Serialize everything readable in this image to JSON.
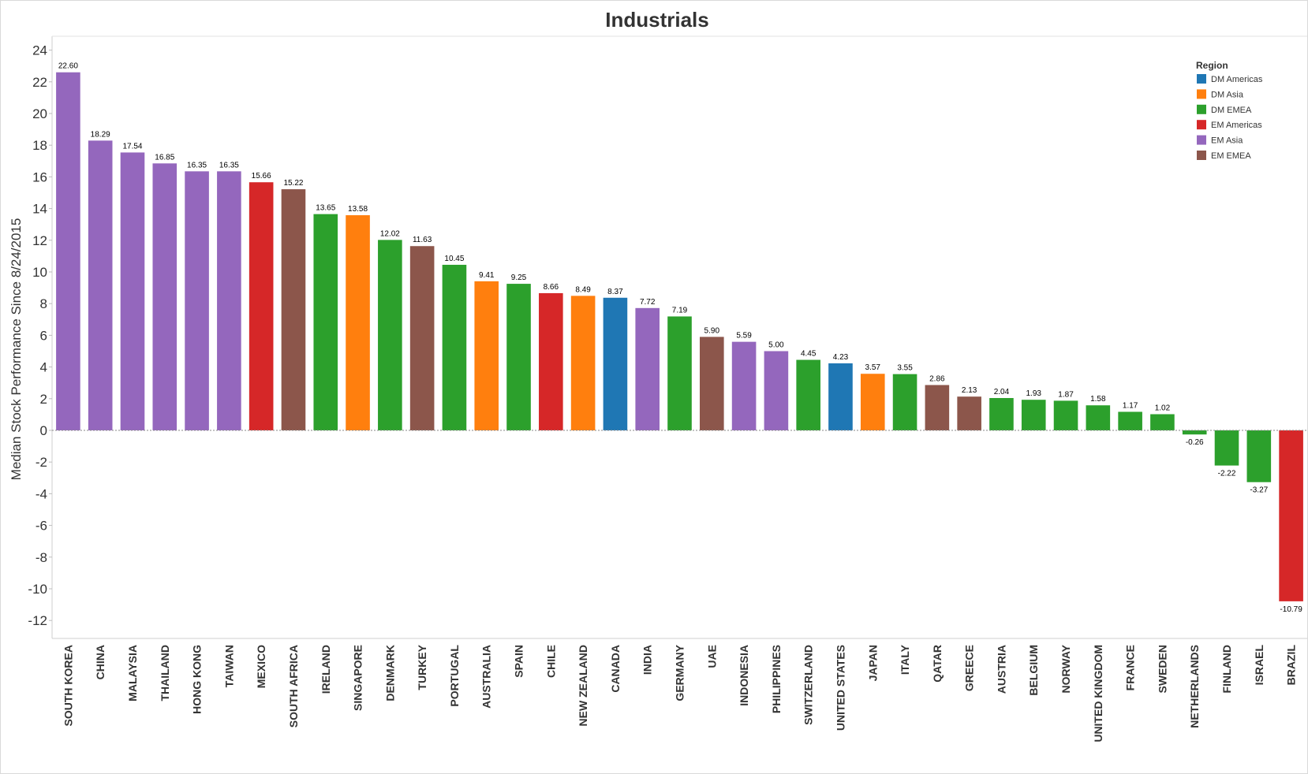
{
  "chart_data": {
    "type": "bar",
    "title": "Industrials",
    "ylabel": "Median Stock Performance Since 8/24/2015",
    "xlabel": "",
    "ylim": [
      -13,
      25
    ],
    "yticks": [
      24,
      22,
      20,
      18,
      16,
      14,
      12,
      10,
      8,
      6,
      4,
      2,
      0,
      -2,
      -4,
      -6,
      -8,
      -10,
      -12
    ],
    "grid": false,
    "legend": {
      "title": "Region",
      "placement": "top-right",
      "entries": [
        {
          "name": "DM Americas",
          "color": "#1f77b4"
        },
        {
          "name": "DM Asia",
          "color": "#ff7f0e"
        },
        {
          "name": "DM EMEA",
          "color": "#2ca02c"
        },
        {
          "name": "EM Americas",
          "color": "#d62728"
        },
        {
          "name": "EM Asia",
          "color": "#9467bd"
        },
        {
          "name": "EM EMEA",
          "color": "#8c564b"
        }
      ]
    },
    "bars": [
      {
        "category": "SOUTH KOREA",
        "value": 22.6,
        "label": "22.60",
        "region": "EM Asia"
      },
      {
        "category": "CHINA",
        "value": 18.29,
        "label": "18.29",
        "region": "EM Asia"
      },
      {
        "category": "MALAYSIA",
        "value": 17.54,
        "label": "17.54",
        "region": "EM Asia"
      },
      {
        "category": "THAILAND",
        "value": 16.85,
        "label": "16.85",
        "region": "EM Asia"
      },
      {
        "category": "HONG KONG",
        "value": 16.35,
        "label": "16.35",
        "region": "EM Asia"
      },
      {
        "category": "TAIWAN",
        "value": 16.35,
        "label": "16.35",
        "region": "EM Asia"
      },
      {
        "category": "MEXICO",
        "value": 15.66,
        "label": "15.66",
        "region": "EM Americas"
      },
      {
        "category": "SOUTH AFRICA",
        "value": 15.22,
        "label": "15.22",
        "region": "EM EMEA"
      },
      {
        "category": "IRELAND",
        "value": 13.65,
        "label": "13.65",
        "region": "DM EMEA"
      },
      {
        "category": "SINGAPORE",
        "value": 13.58,
        "label": "13.58",
        "region": "DM Asia"
      },
      {
        "category": "DENMARK",
        "value": 12.02,
        "label": "12.02",
        "region": "DM EMEA"
      },
      {
        "category": "TURKEY",
        "value": 11.63,
        "label": "11.63",
        "region": "EM EMEA"
      },
      {
        "category": "PORTUGAL",
        "value": 10.45,
        "label": "10.45",
        "region": "DM EMEA"
      },
      {
        "category": "AUSTRALIA",
        "value": 9.41,
        "label": "9.41",
        "region": "DM Asia"
      },
      {
        "category": "SPAIN",
        "value": 9.25,
        "label": "9.25",
        "region": "DM EMEA"
      },
      {
        "category": "CHILE",
        "value": 8.66,
        "label": "8.66",
        "region": "EM Americas"
      },
      {
        "category": "NEW ZEALAND",
        "value": 8.49,
        "label": "8.49",
        "region": "DM Asia"
      },
      {
        "category": "CANADA",
        "value": 8.37,
        "label": "8.37",
        "region": "DM Americas"
      },
      {
        "category": "INDIA",
        "value": 7.72,
        "label": "7.72",
        "region": "EM Asia"
      },
      {
        "category": "GERMANY",
        "value": 7.19,
        "label": "7.19",
        "region": "DM EMEA"
      },
      {
        "category": "UAE",
        "value": 5.9,
        "label": "5.90",
        "region": "EM EMEA"
      },
      {
        "category": "INDONESIA",
        "value": 5.59,
        "label": "5.59",
        "region": "EM Asia"
      },
      {
        "category": "PHILIPPINES",
        "value": 5.0,
        "label": "5.00",
        "region": "EM Asia"
      },
      {
        "category": "SWITZERLAND",
        "value": 4.45,
        "label": "4.45",
        "region": "DM EMEA"
      },
      {
        "category": "UNITED STATES",
        "value": 4.23,
        "label": "4.23",
        "region": "DM Americas"
      },
      {
        "category": "JAPAN",
        "value": 3.57,
        "label": "3.57",
        "region": "DM Asia"
      },
      {
        "category": "ITALY",
        "value": 3.55,
        "label": "3.55",
        "region": "DM EMEA"
      },
      {
        "category": "QATAR",
        "value": 2.86,
        "label": "2.86",
        "region": "EM EMEA"
      },
      {
        "category": "GREECE",
        "value": 2.13,
        "label": "2.13",
        "region": "EM EMEA"
      },
      {
        "category": "AUSTRIA",
        "value": 2.04,
        "label": "2.04",
        "region": "DM EMEA"
      },
      {
        "category": "BELGIUM",
        "value": 1.93,
        "label": "1.93",
        "region": "DM EMEA"
      },
      {
        "category": "NORWAY",
        "value": 1.87,
        "label": "1.87",
        "region": "DM EMEA"
      },
      {
        "category": "UNITED KINGDOM",
        "value": 1.58,
        "label": "1.58",
        "region": "DM EMEA"
      },
      {
        "category": "FRANCE",
        "value": 1.17,
        "label": "1.17",
        "region": "DM EMEA"
      },
      {
        "category": "SWEDEN",
        "value": 1.02,
        "label": "1.02",
        "region": "DM EMEA"
      },
      {
        "category": "NETHERLANDS",
        "value": -0.26,
        "label": "-0.26",
        "region": "DM EMEA"
      },
      {
        "category": "FINLAND",
        "value": -2.22,
        "label": "-2.22",
        "region": "DM EMEA"
      },
      {
        "category": "ISRAEL",
        "value": -3.27,
        "label": "-3.27",
        "region": "DM EMEA"
      },
      {
        "category": "BRAZIL",
        "value": -10.79,
        "label": "-10.79",
        "region": "EM Americas"
      }
    ]
  }
}
